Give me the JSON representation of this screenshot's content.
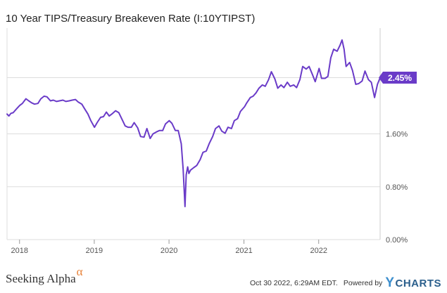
{
  "chart_data": {
    "type": "line",
    "title": "10 Year TIPS/Treasury Breakeven Rate (I:10YTIPST)",
    "series": [
      {
        "name": "",
        "color": "#6a3bc8",
        "points": [
          [
            "2017-11-01",
            1.9
          ],
          [
            "2017-11-10",
            1.87
          ],
          [
            "2017-11-20",
            1.91
          ],
          [
            "2017-12-01",
            1.92
          ],
          [
            "2017-12-15",
            1.97
          ],
          [
            "2018-01-02",
            2.03
          ],
          [
            "2018-01-15",
            2.06
          ],
          [
            "2018-02-01",
            2.13
          ],
          [
            "2018-02-15",
            2.1
          ],
          [
            "2018-03-01",
            2.07
          ],
          [
            "2018-03-15",
            2.05
          ],
          [
            "2018-04-01",
            2.06
          ],
          [
            "2018-04-15",
            2.13
          ],
          [
            "2018-05-01",
            2.17
          ],
          [
            "2018-05-15",
            2.16
          ],
          [
            "2018-06-01",
            2.1
          ],
          [
            "2018-06-15",
            2.11
          ],
          [
            "2018-07-01",
            2.09
          ],
          [
            "2018-07-15",
            2.1
          ],
          [
            "2018-08-01",
            2.11
          ],
          [
            "2018-08-15",
            2.09
          ],
          [
            "2018-09-01",
            2.1
          ],
          [
            "2018-09-15",
            2.11
          ],
          [
            "2018-10-01",
            2.12
          ],
          [
            "2018-10-15",
            2.08
          ],
          [
            "2018-11-01",
            2.05
          ],
          [
            "2018-11-15",
            1.98
          ],
          [
            "2018-12-01",
            1.9
          ],
          [
            "2018-12-15",
            1.8
          ],
          [
            "2019-01-02",
            1.7
          ],
          [
            "2019-01-15",
            1.77
          ],
          [
            "2019-02-01",
            1.85
          ],
          [
            "2019-02-15",
            1.86
          ],
          [
            "2019-03-01",
            1.93
          ],
          [
            "2019-03-15",
            1.87
          ],
          [
            "2019-04-01",
            1.91
          ],
          [
            "2019-04-15",
            1.95
          ],
          [
            "2019-05-01",
            1.92
          ],
          [
            "2019-05-15",
            1.83
          ],
          [
            "2019-06-01",
            1.72
          ],
          [
            "2019-06-15",
            1.7
          ],
          [
            "2019-07-01",
            1.7
          ],
          [
            "2019-07-15",
            1.77
          ],
          [
            "2019-08-01",
            1.69
          ],
          [
            "2019-08-15",
            1.56
          ],
          [
            "2019-09-01",
            1.55
          ],
          [
            "2019-09-15",
            1.68
          ],
          [
            "2019-10-01",
            1.53
          ],
          [
            "2019-10-15",
            1.6
          ],
          [
            "2019-11-01",
            1.63
          ],
          [
            "2019-11-15",
            1.65
          ],
          [
            "2019-12-01",
            1.65
          ],
          [
            "2019-12-15",
            1.75
          ],
          [
            "2020-01-02",
            1.8
          ],
          [
            "2020-01-15",
            1.76
          ],
          [
            "2020-02-01",
            1.65
          ],
          [
            "2020-02-15",
            1.65
          ],
          [
            "2020-03-01",
            1.45
          ],
          [
            "2020-03-10",
            1.06
          ],
          [
            "2020-03-19",
            0.5
          ],
          [
            "2020-03-25",
            0.98
          ],
          [
            "2020-04-01",
            1.1
          ],
          [
            "2020-04-07",
            1.0
          ],
          [
            "2020-04-15",
            1.05
          ],
          [
            "2020-05-01",
            1.09
          ],
          [
            "2020-05-15",
            1.12
          ],
          [
            "2020-06-01",
            1.21
          ],
          [
            "2020-06-15",
            1.32
          ],
          [
            "2020-07-01",
            1.34
          ],
          [
            "2020-07-15",
            1.45
          ],
          [
            "2020-08-01",
            1.56
          ],
          [
            "2020-08-15",
            1.68
          ],
          [
            "2020-09-01",
            1.72
          ],
          [
            "2020-09-15",
            1.64
          ],
          [
            "2020-10-01",
            1.61
          ],
          [
            "2020-10-15",
            1.7
          ],
          [
            "2020-11-01",
            1.68
          ],
          [
            "2020-11-15",
            1.8
          ],
          [
            "2020-12-01",
            1.83
          ],
          [
            "2020-12-15",
            1.94
          ],
          [
            "2021-01-04",
            2.01
          ],
          [
            "2021-01-15",
            2.07
          ],
          [
            "2021-02-01",
            2.15
          ],
          [
            "2021-02-15",
            2.17
          ],
          [
            "2021-03-01",
            2.22
          ],
          [
            "2021-03-15",
            2.29
          ],
          [
            "2021-04-01",
            2.34
          ],
          [
            "2021-04-15",
            2.32
          ],
          [
            "2021-05-01",
            2.42
          ],
          [
            "2021-05-15",
            2.54
          ],
          [
            "2021-06-01",
            2.43
          ],
          [
            "2021-06-15",
            2.29
          ],
          [
            "2021-07-01",
            2.34
          ],
          [
            "2021-07-15",
            2.3
          ],
          [
            "2021-08-01",
            2.38
          ],
          [
            "2021-08-15",
            2.32
          ],
          [
            "2021-09-01",
            2.34
          ],
          [
            "2021-09-15",
            2.3
          ],
          [
            "2021-10-01",
            2.42
          ],
          [
            "2021-10-15",
            2.62
          ],
          [
            "2021-11-01",
            2.58
          ],
          [
            "2021-11-15",
            2.62
          ],
          [
            "2021-12-01",
            2.5
          ],
          [
            "2021-12-15",
            2.39
          ],
          [
            "2022-01-03",
            2.59
          ],
          [
            "2022-01-15",
            2.44
          ],
          [
            "2022-02-01",
            2.44
          ],
          [
            "2022-02-15",
            2.47
          ],
          [
            "2022-03-01",
            2.75
          ],
          [
            "2022-03-15",
            2.88
          ],
          [
            "2022-04-01",
            2.85
          ],
          [
            "2022-04-15",
            2.94
          ],
          [
            "2022-04-25",
            3.02
          ],
          [
            "2022-05-05",
            2.88
          ],
          [
            "2022-05-15",
            2.62
          ],
          [
            "2022-06-01",
            2.68
          ],
          [
            "2022-06-15",
            2.56
          ],
          [
            "2022-07-01",
            2.35
          ],
          [
            "2022-07-15",
            2.36
          ],
          [
            "2022-08-01",
            2.4
          ],
          [
            "2022-08-15",
            2.55
          ],
          [
            "2022-09-01",
            2.42
          ],
          [
            "2022-09-15",
            2.38
          ],
          [
            "2022-10-01",
            2.15
          ],
          [
            "2022-10-15",
            2.35
          ],
          [
            "2022-10-28",
            2.45
          ]
        ]
      }
    ],
    "x_range": [
      "2017-11-01",
      "2022-10-28"
    ],
    "x_ticks": [
      "2018",
      "2019",
      "2020",
      "2021",
      "2022"
    ],
    "ylim": [
      0,
      3.2
    ],
    "y_ticks": [
      0,
      0.8,
      1.6,
      2.45
    ],
    "y_tick_labels": [
      "0.00%",
      "0.80%",
      "1.60%",
      ""
    ],
    "grid": "horizontal",
    "last_value_label": "2.45%",
    "last_value_color": "#6a3bc8"
  },
  "footer": {
    "brand": "Seeking Alpha",
    "brand_mark": "α",
    "timestamp": "Oct 30 2022, 6:29AM EDT.",
    "powered_by": "Powered by",
    "provider": "CHARTS",
    "provider_mark": "Y",
    "brand_mark_color": "#e8833a",
    "provider_color": "#2b5f8c"
  }
}
